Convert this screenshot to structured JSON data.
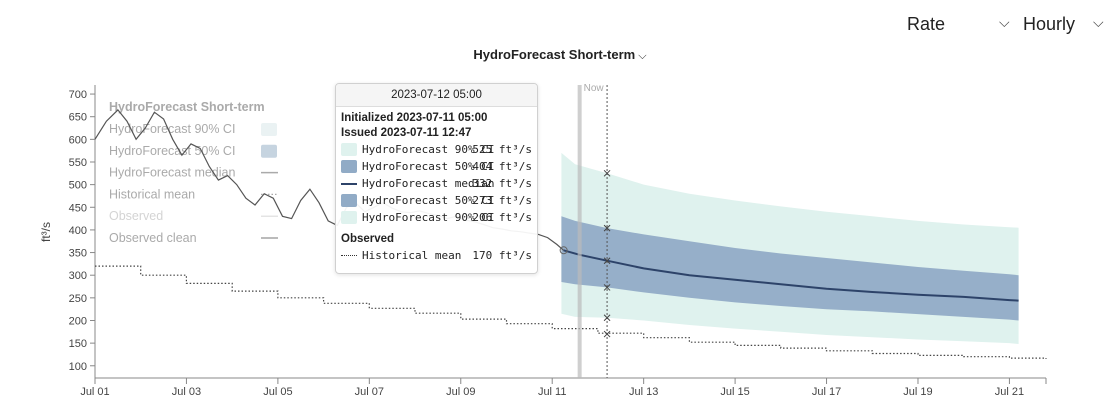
{
  "controls": {
    "rate_label": "Rate",
    "interval_label": "Hourly",
    "chevron_glyph": "⌵",
    "title_chevron_glyph": "⌵"
  },
  "header": {
    "title": "HydroForecast Short-term"
  },
  "legend": {
    "title": "HydroForecast Short-term",
    "items": [
      {
        "label": "HydroForecast 90% CI",
        "swatch": "area90"
      },
      {
        "label": "HydroForecast 50% CI",
        "swatch": "area50"
      },
      {
        "label": "HydroForecast median",
        "swatch": "line"
      },
      {
        "label": "Historical mean",
        "swatch": "dotted"
      },
      {
        "label": "Observed",
        "swatch": "faint-line"
      },
      {
        "label": "Observed clean",
        "swatch": "line-gray"
      }
    ]
  },
  "now_label": "Now",
  "colors": {
    "ci90": "#dff2ee",
    "ci50": "#91abc6",
    "median": "#2d4369",
    "historical": "#444444",
    "observed": "#555555",
    "now_line": "#bbbbbb",
    "axis": "#888888"
  },
  "tooltip": {
    "date": "2023-07-12 05:00",
    "initialized": "Initialized 2023-07-11 05:00",
    "issued": "Issued 2023-07-11 12:47",
    "rows": [
      {
        "label": "HydroForecast 90% CI",
        "value": "525 ft³/s",
        "swatch": "ci90"
      },
      {
        "label": "HydroForecast 50% CI",
        "value": "404 ft³/s",
        "swatch": "ci50"
      },
      {
        "label": "HydroForecast median",
        "value": "332 ft³/s",
        "swatch": "median"
      },
      {
        "label": "HydroForecast 50% CI",
        "value": "273 ft³/s",
        "swatch": "ci50"
      },
      {
        "label": "HydroForecast 90% CI",
        "value": "206 ft³/s",
        "swatch": "ci90"
      }
    ],
    "observed_header": "Observed",
    "observed_rows": [
      {
        "label": "Historical mean",
        "value": "170 ft³/s",
        "swatch": "dotted"
      }
    ]
  },
  "chart_data": {
    "type": "area",
    "ylabel": "ft³/s",
    "xlabel": "",
    "ylim": [
      73,
      720
    ],
    "xlim": [
      0,
      20.8
    ],
    "yticks": [
      100,
      150,
      200,
      250,
      300,
      350,
      400,
      450,
      500,
      550,
      600,
      650,
      700
    ],
    "xticks": [
      {
        "x": 0,
        "label": "Jul 01"
      },
      {
        "x": 2,
        "label": "Jul 03"
      },
      {
        "x": 4,
        "label": "Jul 05"
      },
      {
        "x": 6,
        "label": "Jul 07"
      },
      {
        "x": 8,
        "label": "Jul 09"
      },
      {
        "x": 10,
        "label": "Jul 11"
      },
      {
        "x": 12,
        "label": "Jul 13"
      },
      {
        "x": 14,
        "label": "Jul 15"
      },
      {
        "x": 16,
        "label": "Jul 17"
      },
      {
        "x": 18,
        "label": "Jul 19"
      },
      {
        "x": 20,
        "label": "Jul 21"
      }
    ],
    "now_x": 10.6,
    "cursor_x": 11.2,
    "grid": false,
    "legend_position": "top-left",
    "series": [
      {
        "name": "Observed clean",
        "kind": "line",
        "x": [
          0,
          0.25,
          0.5,
          0.7,
          0.9,
          1.1,
          1.3,
          1.5,
          1.7,
          1.9,
          2.1,
          2.3,
          2.5,
          2.7,
          2.9,
          3.1,
          3.3,
          3.5,
          3.7,
          3.9,
          4.1,
          4.3,
          4.5,
          4.7,
          4.9,
          5.1,
          5.3,
          5.5,
          5.7,
          5.9,
          6.1,
          6.3,
          6.5,
          6.7,
          6.9,
          7.1,
          7.3,
          7.5,
          7.7,
          7.9,
          8.1,
          8.3,
          8.5,
          8.7,
          8.9,
          9.1,
          9.3,
          9.5,
          9.7,
          9.9,
          10.1,
          10.25
        ],
        "values": [
          600,
          640,
          665,
          640,
          600,
          625,
          660,
          645,
          600,
          565,
          590,
          580,
          540,
          510,
          520,
          500,
          470,
          455,
          480,
          470,
          430,
          425,
          465,
          490,
          460,
          420,
          410,
          450,
          460,
          440,
          450,
          460,
          448,
          440,
          438,
          442,
          436,
          432,
          425,
          430,
          422,
          418,
          412,
          405,
          402,
          398,
          396,
          393,
          390,
          383,
          368,
          355
        ]
      },
      {
        "name": "Historical mean",
        "kind": "step-dotted",
        "x": [
          0,
          1,
          2,
          3,
          4,
          5,
          6,
          7,
          8,
          9,
          10,
          11,
          12,
          13,
          14,
          15,
          16,
          17,
          18,
          19,
          20,
          20.8
        ],
        "values": [
          320,
          300,
          282,
          265,
          250,
          238,
          227,
          216,
          203,
          193,
          182,
          172,
          162,
          152,
          145,
          139,
          133,
          127,
          123,
          120,
          117,
          115
        ]
      },
      {
        "name": "HydroForecast 90% CI",
        "kind": "band",
        "x": [
          10.2,
          10.5,
          11.2,
          12,
          13,
          14,
          15,
          16,
          17,
          18,
          19,
          20,
          20.2
        ],
        "upper": [
          570,
          545,
          525,
          500,
          480,
          465,
          452,
          440,
          430,
          420,
          412,
          406,
          405
        ],
        "lower": [
          215,
          208,
          206,
          200,
          190,
          182,
          175,
          168,
          163,
          158,
          154,
          150,
          148
        ]
      },
      {
        "name": "HydroForecast 50% CI",
        "kind": "band",
        "x": [
          10.2,
          10.5,
          11.2,
          12,
          13,
          14,
          15,
          16,
          17,
          18,
          19,
          20,
          20.2
        ],
        "upper": [
          430,
          420,
          404,
          390,
          375,
          360,
          348,
          338,
          328,
          318,
          310,
          302,
          300
        ],
        "lower": [
          285,
          280,
          273,
          262,
          250,
          240,
          232,
          225,
          220,
          214,
          208,
          202,
          200
        ]
      },
      {
        "name": "HydroForecast median",
        "kind": "line",
        "x": [
          10.25,
          10.6,
          11.2,
          12,
          13,
          14,
          15,
          16,
          17,
          18,
          19,
          20,
          20.2
        ],
        "values": [
          355,
          345,
          332,
          315,
          300,
          290,
          280,
          270,
          263,
          257,
          252,
          245,
          244
        ]
      }
    ],
    "cursor_markers": [
      525,
      404,
      332,
      273,
      206,
      170
    ],
    "observed_end_marker": {
      "x": 10.25,
      "value": 355
    }
  }
}
